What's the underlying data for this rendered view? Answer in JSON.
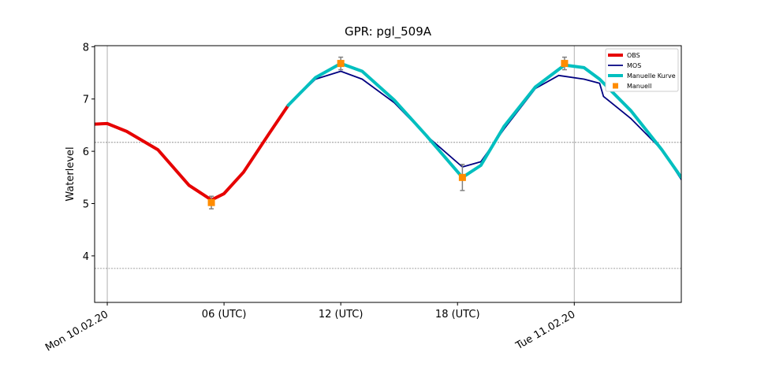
{
  "chart_data": {
    "type": "line",
    "title": "GPR: pgl_509A",
    "y_label": "Waterlevel",
    "xlim": [
      -0.65,
      29.5
    ],
    "ylim": [
      3.11,
      8.02
    ],
    "xticks": [
      {
        "value": 0,
        "label": "Mon 10.02.20"
      },
      {
        "value": 6,
        "label": "06 (UTC)"
      },
      {
        "value": 12,
        "label": "12 (UTC)"
      },
      {
        "value": 18,
        "label": "18 (UTC)"
      },
      {
        "value": 24,
        "label": "Tue 11.02.20"
      }
    ],
    "yticks": [
      4,
      5,
      6,
      7,
      8
    ],
    "hlines": [
      6.17,
      3.76
    ],
    "vlines": [
      0,
      24
    ],
    "legend": "upper right",
    "series": [
      {
        "name": "OBS",
        "color": "#e60000",
        "width": 4,
        "x": [
          -0.65,
          0,
          1,
          2.6,
          4.2,
          5.35,
          6,
          7,
          8.3,
          9.3
        ],
        "values": [
          6.52,
          6.53,
          6.38,
          6.03,
          5.35,
          5.07,
          5.19,
          5.6,
          6.33,
          6.88
        ]
      },
      {
        "name": "MOS",
        "color": "#000080",
        "width": 1.8,
        "x": [
          9.3,
          10.7,
          12,
          13.1,
          14.75,
          16.4,
          18.25,
          19.2,
          20.4,
          22,
          23.2,
          24.5,
          25.3,
          25.5,
          26.9,
          28.5,
          29.5
        ],
        "values": [
          6.88,
          7.38,
          7.53,
          7.38,
          6.93,
          6.3,
          5.7,
          5.8,
          6.43,
          7.2,
          7.45,
          7.38,
          7.3,
          7.05,
          6.63,
          6.03,
          5.46
        ]
      },
      {
        "name": "Manuelle Kurve",
        "color": "#00bfbf",
        "width": 4,
        "x": [
          9.3,
          10.7,
          12,
          13.1,
          14.75,
          16.4,
          18.25,
          19.2,
          20.4,
          22,
          23.5,
          24.5,
          25.3,
          26.9,
          28.5,
          29.5
        ],
        "values": [
          6.88,
          7.41,
          7.68,
          7.53,
          6.98,
          6.3,
          5.5,
          5.73,
          6.48,
          7.23,
          7.65,
          7.6,
          7.38,
          6.78,
          6.03,
          5.5
        ]
      },
      {
        "name": "Manuell",
        "color": "#ff8c00",
        "mode": "markers",
        "x": [
          5.35,
          12,
          18.25,
          23.5
        ],
        "values": [
          5.02,
          7.68,
          5.5,
          7.68
        ],
        "error": [
          0.12,
          0.12,
          0.25,
          0.12
        ]
      }
    ]
  }
}
